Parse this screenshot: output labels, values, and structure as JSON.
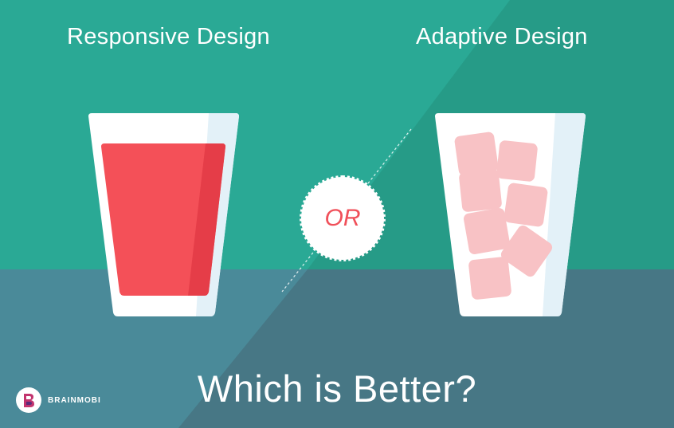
{
  "headings": {
    "left": "Responsive Design",
    "right": "Adaptive Design"
  },
  "divider": {
    "label": "OR"
  },
  "tagline": "Which is Better?",
  "brand": {
    "name": "BRAINMOBI",
    "icon": "brainmobi-logo-icon"
  },
  "colors": {
    "teal_top": "#2aa995",
    "teal_top_right": "#269b87",
    "slate_bottom": "#4a8a99",
    "slate_bottom_right": "#477785",
    "drink_red": "#f45058",
    "ice_pink": "#f8c2c5",
    "glass_white": "#ffffff",
    "glass_shade": "#e3f1f8",
    "or_text": "#f0505a"
  }
}
